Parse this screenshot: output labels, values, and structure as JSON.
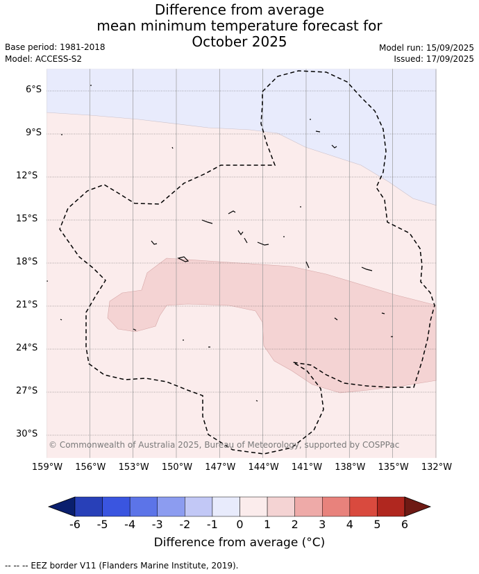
{
  "title_lines": [
    "Difference from average",
    "mean minimum temperature forecast for",
    "October 2025"
  ],
  "base_period": "Base period: 1981-2018",
  "model": "Model: ACCESS-S2",
  "model_run": "Model run: 15/09/2025",
  "issued": "Issued: 17/09/2025",
  "copyright": "© Commonwealth of Australia 2025, Bureau of Meteorology, supported by COSPPac",
  "lat_labels": [
    "6°S",
    "9°S",
    "12°S",
    "15°S",
    "18°S",
    "21°S",
    "24°S",
    "27°S",
    "30°S"
  ],
  "lon_labels": [
    "159°W",
    "156°W",
    "153°W",
    "150°W",
    "147°W",
    "144°W",
    "141°W",
    "138°W",
    "135°W",
    "132°W"
  ],
  "colorbar": {
    "ticks": [
      "-6",
      "-5",
      "-4",
      "-3",
      "-2",
      "-1",
      "0",
      "1",
      "2",
      "3",
      "4",
      "5",
      "6"
    ],
    "colors": [
      "#0a1f6e",
      "#2840b8",
      "#3a55e0",
      "#5c74e8",
      "#8c9cf0",
      "#c2c8f6",
      "#e8ebfc",
      "#fbecec",
      "#f4d3d3",
      "#eeaaa8",
      "#e8827c",
      "#d94a3e",
      "#b0271f",
      "#6e1a14"
    ],
    "label": "Difference from average (°C)"
  },
  "map_colors": {
    "category_minus1_to_0": "#e8ebfc",
    "category_0_to_1": "#fbecec",
    "category_1_to_2": "#f4d3d3"
  },
  "footnote": "--  --  -- EEZ border V11 (Flanders Marine Institute, 2019)."
}
